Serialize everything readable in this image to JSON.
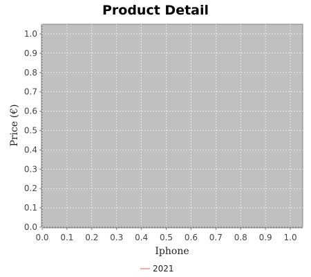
{
  "chart_data": {
    "type": "line",
    "title": "Product Detail",
    "xlabel": "Iphone",
    "ylabel": "Price (€)",
    "xlim": [
      0.0,
      1.05
    ],
    "ylim": [
      0.0,
      1.05
    ],
    "x_ticks": [
      "0.0",
      "0.1",
      "0.2",
      "0.3",
      "0.4",
      "0.5",
      "0.6",
      "0.7",
      "0.8",
      "0.9",
      "1.0"
    ],
    "y_ticks": [
      "0.0",
      "0.1",
      "0.2",
      "0.3",
      "0.4",
      "0.5",
      "0.6",
      "0.7",
      "0.8",
      "0.9",
      "1.0"
    ],
    "grid": true,
    "legend_position": "bottom-center",
    "series": [
      {
        "name": "2021",
        "color": "#ff5555",
        "x": [],
        "y": []
      }
    ],
    "plot_background": "#c0c0c0",
    "grid_color": "#ffffff"
  }
}
